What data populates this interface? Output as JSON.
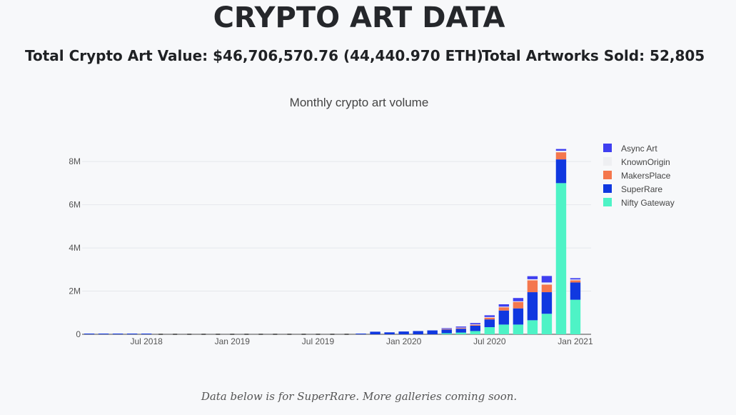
{
  "header": {
    "title": "CRYPTO ART DATA",
    "total_value_label": "Total Crypto Art Value:",
    "total_value": "$46,706,570.76 (44,440.970 ETH)",
    "artworks_label": "Total Artworks Sold:",
    "artworks_value": "52,805"
  },
  "footer": {
    "note": "Data below is for SuperRare. More galleries coming soon."
  },
  "chart_data": {
    "type": "bar",
    "stacked": true,
    "title": "Monthly crypto art volume",
    "xlabel": "",
    "ylabel": "",
    "ylim": [
      0,
      8600000
    ],
    "y_ticks": [
      {
        "value": 0,
        "label": "0"
      },
      {
        "value": 2000000,
        "label": "2M"
      },
      {
        "value": 4000000,
        "label": "4M"
      },
      {
        "value": 6000000,
        "label": "6M"
      },
      {
        "value": 8000000,
        "label": "8M"
      }
    ],
    "x_ticks": [
      {
        "index": 4,
        "label": "Jul 2018"
      },
      {
        "index": 10,
        "label": "Jan 2019"
      },
      {
        "index": 16,
        "label": "Jul 2019"
      },
      {
        "index": 22,
        "label": "Jan 2020"
      },
      {
        "index": 28,
        "label": "Jul 2020"
      },
      {
        "index": 34,
        "label": "Jan 2021"
      }
    ],
    "categories": [
      "Mar 2018",
      "Apr 2018",
      "May 2018",
      "Jun 2018",
      "Jul 2018",
      "Aug 2018",
      "Sep 2018",
      "Oct 2018",
      "Nov 2018",
      "Dec 2018",
      "Jan 2019",
      "Feb 2019",
      "Mar 2019",
      "Apr 2019",
      "May 2019",
      "Jun 2019",
      "Jul 2019",
      "Aug 2019",
      "Sep 2019",
      "Oct 2019",
      "Nov 2019",
      "Dec 2019",
      "Jan 2020",
      "Feb 2020",
      "Mar 2020",
      "Apr 2020",
      "May 2020",
      "Jun 2020",
      "Jul 2020",
      "Aug 2020",
      "Sep 2020",
      "Oct 2020",
      "Nov 2020",
      "Dec 2020",
      "Jan 2021"
    ],
    "legend_position": "top-right",
    "series": [
      {
        "name": "Nifty Gateway",
        "color": "#4ef3c6",
        "values": [
          0,
          0,
          0,
          0,
          0,
          0,
          0,
          0,
          0,
          0,
          0,
          0,
          0,
          0,
          0,
          0,
          0,
          0,
          0,
          0,
          0,
          0,
          0,
          0,
          0,
          50000,
          80000,
          150000,
          330000,
          450000,
          450000,
          650000,
          950000,
          7000000,
          1600000
        ]
      },
      {
        "name": "SuperRare",
        "color": "#1038e0",
        "values": [
          10000,
          10000,
          10000,
          10000,
          10000,
          0,
          0,
          0,
          0,
          0,
          0,
          0,
          0,
          0,
          0,
          0,
          0,
          0,
          0,
          10000,
          120000,
          90000,
          130000,
          150000,
          180000,
          170000,
          180000,
          250000,
          360000,
          650000,
          750000,
          1300000,
          1000000,
          1100000,
          800000
        ]
      },
      {
        "name": "MakersPlace",
        "color": "#f4774d",
        "values": [
          0,
          0,
          0,
          0,
          0,
          0,
          0,
          0,
          0,
          0,
          0,
          0,
          0,
          0,
          0,
          0,
          0,
          0,
          0,
          0,
          0,
          0,
          0,
          0,
          0,
          20000,
          30000,
          40000,
          80000,
          150000,
          300000,
          550000,
          350000,
          330000,
          100000
        ]
      },
      {
        "name": "KnownOrigin",
        "color": "#eeeff2",
        "values": [
          0,
          0,
          0,
          0,
          0,
          0,
          0,
          0,
          0,
          0,
          0,
          0,
          0,
          0,
          0,
          0,
          0,
          0,
          0,
          0,
          0,
          0,
          0,
          0,
          0,
          10000,
          20000,
          20000,
          30000,
          30000,
          30000,
          50000,
          100000,
          70000,
          40000
        ]
      },
      {
        "name": "Async Art",
        "color": "#3f3ff0",
        "values": [
          0,
          0,
          0,
          0,
          0,
          0,
          0,
          0,
          0,
          0,
          0,
          0,
          0,
          0,
          0,
          0,
          0,
          0,
          0,
          0,
          0,
          0,
          0,
          0,
          0,
          30000,
          50000,
          60000,
          80000,
          110000,
          150000,
          140000,
          300000,
          80000,
          60000
        ]
      }
    ],
    "dash_indices": [
      5,
      6,
      7,
      8,
      9,
      10,
      11,
      12,
      13,
      14,
      15,
      16,
      17,
      18
    ]
  }
}
